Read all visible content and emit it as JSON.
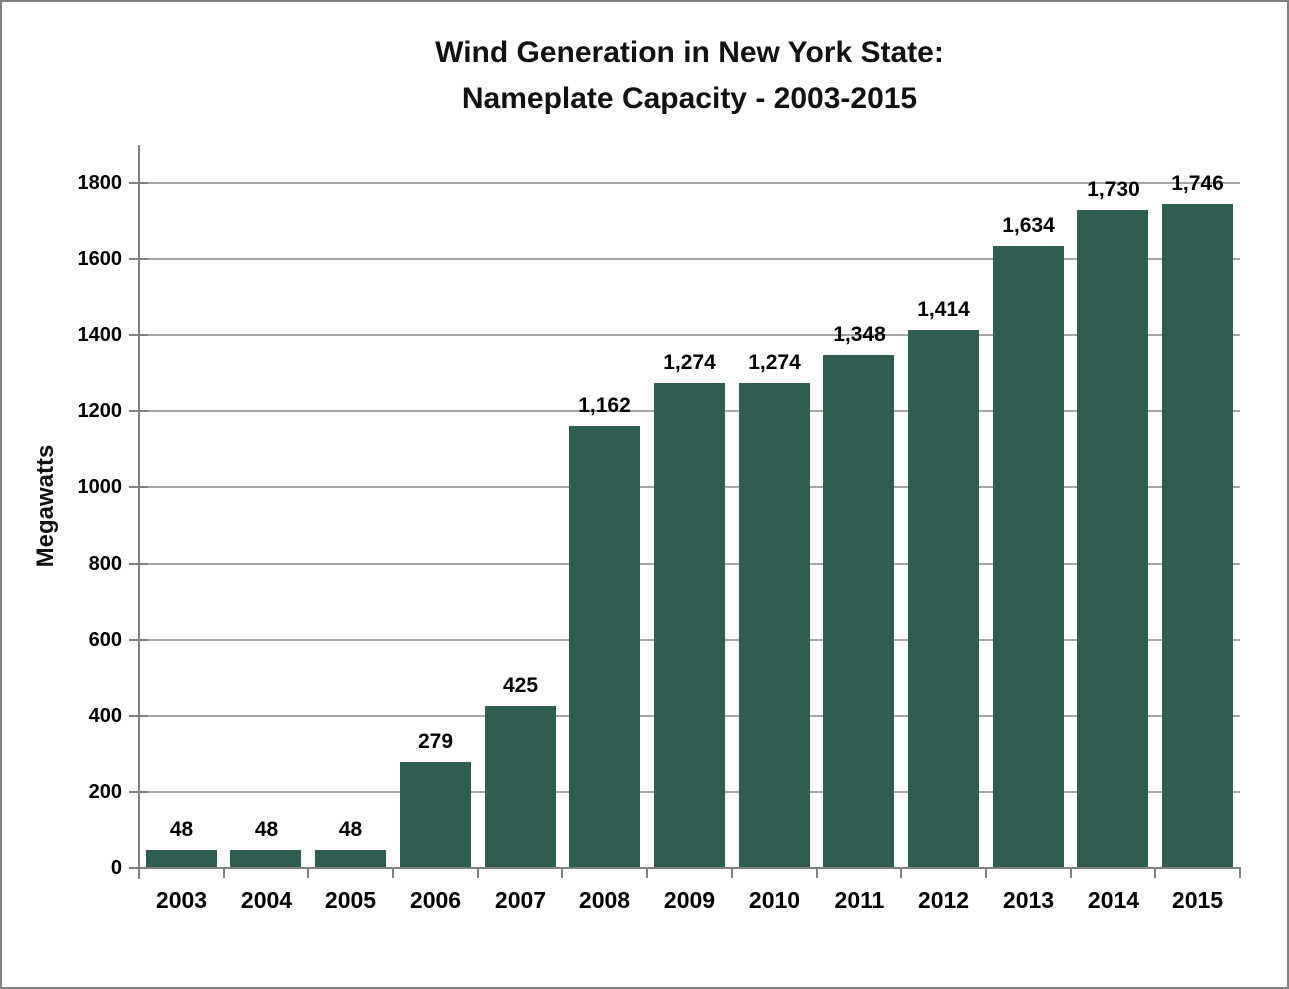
{
  "page": {
    "background": "#ffffff",
    "frame_border_color": "#808080"
  },
  "chart_data": {
    "type": "bar",
    "title_lines": [
      "Wind Generation in New York State:",
      "Nameplate Capacity - 2003-2015"
    ],
    "ylabel": "Megawatts",
    "xlabel": "",
    "categories": [
      "2003",
      "2004",
      "2005",
      "2006",
      "2007",
      "2008",
      "2009",
      "2010",
      "2011",
      "2012",
      "2013",
      "2014",
      "2015"
    ],
    "values": [
      48,
      48,
      48,
      279,
      425,
      1162,
      1274,
      1274,
      1348,
      1414,
      1634,
      1730,
      1746
    ],
    "value_labels": [
      "48",
      "48",
      "48",
      "279",
      "425",
      "1,162",
      "1,274",
      "1,274",
      "1,348",
      "1,414",
      "1,634",
      "1,730",
      "1,746"
    ],
    "y_ticks": [
      0,
      200,
      400,
      600,
      800,
      1000,
      1200,
      1400,
      1600,
      1800
    ],
    "y_tick_labels": [
      "0",
      "200",
      "400",
      "600",
      "800",
      "1000",
      "1200",
      "1400",
      "1600",
      "1800"
    ],
    "ylim": [
      0,
      1900
    ],
    "grid": true,
    "legend_position": "none",
    "colors": {
      "bar": "#2C5E52",
      "gridline": "#A6A6A6",
      "axis": "#7F7F7F",
      "text": "#000000"
    }
  }
}
